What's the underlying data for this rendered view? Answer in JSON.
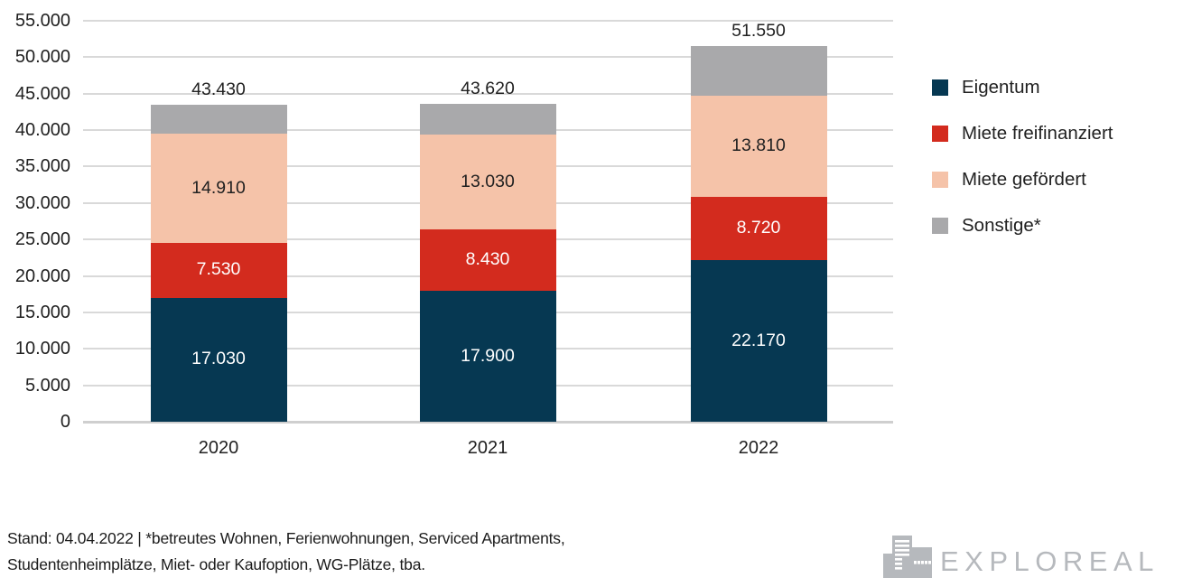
{
  "chart_data": {
    "type": "bar",
    "subtype": "stacked",
    "categories": [
      "2020",
      "2021",
      "2022"
    ],
    "series": [
      {
        "name": "Eigentum",
        "color": "#063852",
        "label_color": "#ffffff",
        "values": [
          17030,
          17900,
          22170
        ],
        "value_labels": [
          "17.030",
          "17.900",
          "22.170"
        ],
        "show_value_labels": true
      },
      {
        "name": "Miete freifinanziert",
        "color": "#d32b1e",
        "label_color": "#ffffff",
        "values": [
          7530,
          8430,
          8720
        ],
        "value_labels": [
          "7.530",
          "8.430",
          "8.720"
        ],
        "show_value_labels": true
      },
      {
        "name": "Miete gefördert",
        "color": "#f5c3a9",
        "label_color": "#212121",
        "values": [
          14910,
          13030,
          13810
        ],
        "value_labels": [
          "14.910",
          "13.030",
          "13.810"
        ],
        "show_value_labels": true
      },
      {
        "name": "Sonstige*",
        "color": "#a9a9ab",
        "label_color": "#212121",
        "values": [
          3960,
          4260,
          6850
        ],
        "show_value_labels": false
      }
    ],
    "totals": [
      43430,
      43620,
      51550
    ],
    "total_labels": [
      "43.430",
      "43.620",
      "51.550"
    ],
    "y_axis": {
      "min": 0,
      "max": 55000,
      "step": 5000,
      "tick_labels": [
        "0",
        "5.000",
        "10.000",
        "15.000",
        "20.000",
        "25.000",
        "30.000",
        "35.000",
        "40.000",
        "45.000",
        "50.000",
        "55.000"
      ]
    },
    "xlabel": "",
    "ylabel": "",
    "title": "",
    "grid": true,
    "legend_position": "right"
  },
  "footer": {
    "lines": [
      "Stand: 04.04.2022 | *betreutes Wohnen, Ferienwohnungen, Serviced Apartments,",
      "Studentenheimplätze, Miet- oder Kaufoption, WG-Plätze, tba."
    ]
  },
  "logo": {
    "text": "EXPLOREAL",
    "icon": "buildings-icon",
    "color": "#b6b9bd"
  },
  "colors": {
    "grid": "#d9d9d9",
    "baseline": "#cfcfcf",
    "text": "#212121"
  }
}
